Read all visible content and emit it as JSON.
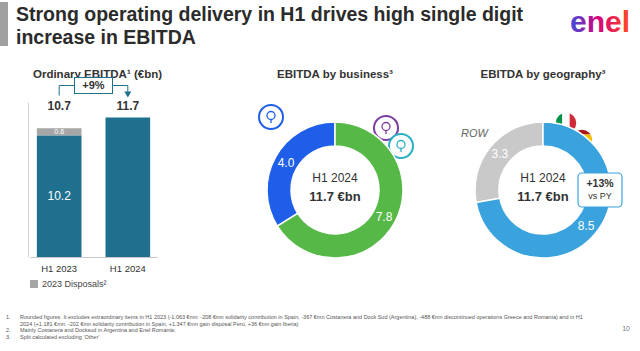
{
  "title": "Strong operating delivery in H1 drives high single digit increase in EBITDA",
  "logo": "enel",
  "page_number": "10",
  "footnotes": [
    {
      "number": "1.",
      "text": "Rounded figures. It excludes extraordinary items in H1 2023 (-1.063 €mn: -208 €mn solidarity contribution in Spain, -367 €mn Costanera and Dock Sud (Argentina), -488 €mn discontinued operations Greece and Romania) and in H1 2024 (+1.181 €mn: -202 €mn solidarity contribution in Spain, +1.347 €mn gain disposal Perú, +36 €mn gain Iberia)"
    },
    {
      "number": "2.",
      "text": "Mainly Costanera and Docksud in Argentina and Enel Romania;"
    },
    {
      "number": "3.",
      "text": "Split calculated excluding ‘Other’"
    }
  ],
  "chart_data": [
    {
      "type": "bar",
      "title": "Ordinary EBITDA¹ (€bn)",
      "stacked": true,
      "categories": [
        "H1 2023",
        "H1 2024"
      ],
      "series": [
        {
          "color": "#1f6f8f",
          "values": [
            10.2,
            11.7
          ],
          "value_labels": [
            "10.2",
            null
          ]
        },
        {
          "name": "2023 Disposals²",
          "color": "#a6a6a6",
          "values": [
            0.6,
            null
          ],
          "value_labels": [
            "0.6",
            null
          ]
        }
      ],
      "totals": [
        10.7,
        11.7
      ],
      "annotations": [
        "+9%"
      ],
      "ylim": [
        0,
        13
      ],
      "yticks": [],
      "tick_labels": "x",
      "legend": "bottom"
    },
    {
      "type": "donut",
      "title": "EBITDA by business³",
      "values": [
        4.0,
        7.8
      ],
      "value_labels": [
        "4.0",
        "7.8"
      ],
      "colors": [
        "#1e5ee8",
        "#56b947"
      ],
      "center_text": [
        "H1 2024",
        "11.7 €bn"
      ],
      "data_labels": true
    },
    {
      "type": "donut",
      "title": "EBITDA by geography³",
      "categories": [
        "ROW",
        null
      ],
      "values": [
        3.3,
        8.5
      ],
      "value_labels": [
        "3.3",
        "8.5"
      ],
      "colors": [
        "#c9c9c9",
        "#3aa3de"
      ],
      "center_text": [
        "H1 2024",
        "11.7 €bn"
      ],
      "annotations": [
        "+13%",
        "vs PY"
      ],
      "data_labels": true
    }
  ]
}
